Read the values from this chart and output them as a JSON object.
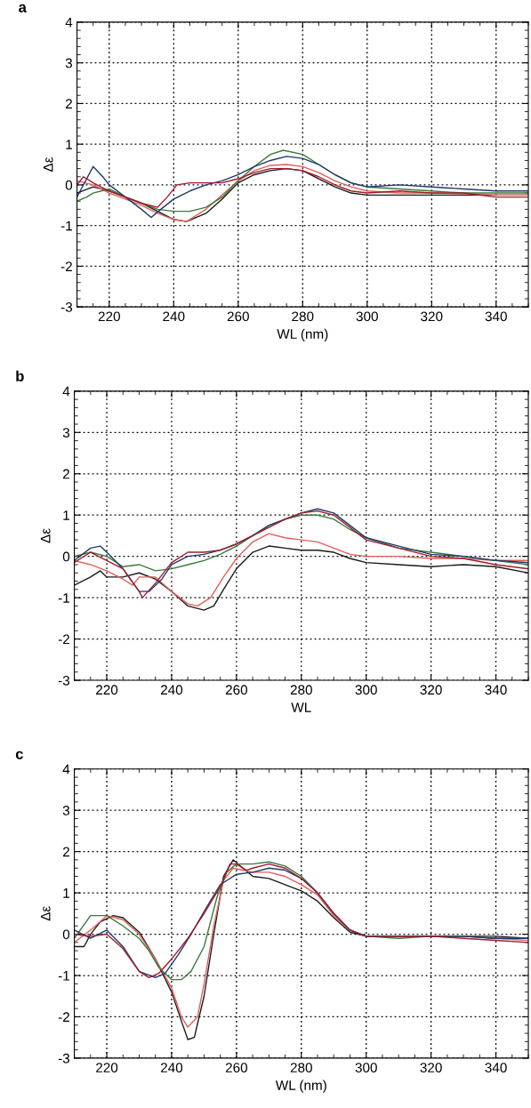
{
  "chart_data": [
    {
      "type": "line",
      "title": "a",
      "xlabel": "WL (nm)",
      "ylabel": "Δε",
      "xlim": [
        210,
        350
      ],
      "ylim": [
        -3,
        4
      ],
      "xticks": [
        220,
        240,
        260,
        280,
        300,
        320,
        340
      ],
      "yticks": [
        -3,
        -2,
        -1,
        0,
        1,
        2,
        3,
        4
      ],
      "grid": true,
      "line_style": "solid",
      "series": [
        {
          "color": "#1a1a1a",
          "x": [
            210,
            215,
            220,
            225,
            230,
            235,
            240,
            244,
            250,
            255,
            260,
            265,
            270,
            275,
            280,
            285,
            290,
            295,
            300,
            310,
            320,
            330,
            340,
            350
          ],
          "values": [
            -0.2,
            -0.05,
            -0.15,
            -0.3,
            -0.45,
            -0.65,
            -0.85,
            -0.9,
            -0.7,
            -0.35,
            0.05,
            0.25,
            0.35,
            0.4,
            0.35,
            0.15,
            -0.05,
            -0.2,
            -0.25,
            -0.25,
            -0.25,
            -0.25,
            -0.25,
            -0.25
          ]
        },
        {
          "color": "#e0605a",
          "x": [
            210,
            215,
            220,
            225,
            230,
            235,
            240,
            244,
            250,
            255,
            260,
            265,
            270,
            275,
            280,
            285,
            290,
            295,
            300,
            310,
            320,
            330,
            340,
            350
          ],
          "values": [
            0.1,
            0.0,
            -0.2,
            -0.35,
            -0.5,
            -0.7,
            -0.85,
            -0.9,
            -0.6,
            -0.25,
            0.1,
            0.35,
            0.48,
            0.5,
            0.45,
            0.3,
            0.1,
            -0.05,
            -0.15,
            -0.2,
            -0.2,
            -0.22,
            -0.25,
            -0.25
          ]
        },
        {
          "color": "#3a7a3a",
          "x": [
            210,
            213,
            215,
            220,
            225,
            230,
            235,
            240,
            245,
            250,
            255,
            260,
            265,
            270,
            274,
            280,
            285,
            290,
            295,
            300,
            310,
            320,
            330,
            340,
            350
          ],
          "values": [
            -0.4,
            -0.3,
            -0.2,
            -0.1,
            -0.3,
            -0.45,
            -0.6,
            -0.65,
            -0.65,
            -0.55,
            -0.3,
            0.1,
            0.45,
            0.75,
            0.85,
            0.75,
            0.5,
            0.25,
            0.05,
            -0.05,
            -0.1,
            -0.15,
            -0.2,
            -0.2,
            -0.2
          ]
        },
        {
          "color": "#1f3a6e",
          "x": [
            210,
            215,
            218,
            220,
            225,
            230,
            233,
            236,
            240,
            245,
            250,
            255,
            260,
            265,
            270,
            275,
            280,
            285,
            290,
            295,
            300,
            310,
            320,
            330,
            340,
            350
          ],
          "values": [
            -0.3,
            0.45,
            0.2,
            0.0,
            -0.3,
            -0.6,
            -0.8,
            -0.6,
            -0.35,
            -0.15,
            0.0,
            0.1,
            0.25,
            0.45,
            0.6,
            0.7,
            0.65,
            0.5,
            0.25,
            0.05,
            -0.05,
            0.0,
            -0.05,
            -0.1,
            -0.15,
            -0.15
          ]
        },
        {
          "color": "#a01c2c",
          "x": [
            210,
            212,
            215,
            220,
            225,
            230,
            235,
            238,
            241,
            245,
            250,
            255,
            260,
            265,
            270,
            275,
            280,
            285,
            290,
            295,
            300,
            310,
            320,
            330,
            340,
            350
          ],
          "values": [
            0.0,
            0.2,
            0.05,
            -0.15,
            -0.3,
            -0.45,
            -0.55,
            -0.3,
            0.0,
            0.05,
            0.05,
            0.05,
            0.15,
            0.3,
            0.4,
            0.4,
            0.35,
            0.2,
            0.0,
            -0.15,
            -0.2,
            -0.15,
            -0.2,
            -0.2,
            -0.3,
            -0.3
          ]
        }
      ]
    },
    {
      "type": "line",
      "title": "b",
      "xlabel": "WL",
      "ylabel": "Δε",
      "xlim": [
        210,
        350
      ],
      "ylim": [
        -3,
        4
      ],
      "xticks": [
        220,
        240,
        260,
        280,
        300,
        320,
        340
      ],
      "yticks": [
        -3,
        -2,
        -1,
        0,
        1,
        2,
        3,
        4
      ],
      "grid": true,
      "line_style": "solid",
      "series": [
        {
          "color": "#1a1a1a",
          "x": [
            210,
            215,
            218,
            220,
            225,
            230,
            235,
            240,
            245,
            250,
            253,
            256,
            260,
            265,
            270,
            275,
            280,
            285,
            290,
            295,
            300,
            310,
            320,
            330,
            340,
            350
          ],
          "values": [
            -0.7,
            -0.5,
            -0.35,
            -0.5,
            -0.5,
            -0.4,
            -0.55,
            -0.85,
            -1.2,
            -1.3,
            -1.2,
            -0.8,
            -0.3,
            0.1,
            0.25,
            0.2,
            0.15,
            0.15,
            0.1,
            -0.05,
            -0.15,
            -0.2,
            -0.25,
            -0.2,
            -0.25,
            -0.4
          ]
        },
        {
          "color": "#e0605a",
          "x": [
            210,
            215,
            220,
            225,
            228,
            230,
            235,
            240,
            245,
            248,
            252,
            256,
            260,
            265,
            270,
            275,
            280,
            285,
            290,
            295,
            300,
            310,
            320,
            330,
            340,
            350
          ],
          "values": [
            -0.1,
            -0.2,
            -0.35,
            -0.55,
            -0.7,
            -0.5,
            -0.5,
            -0.85,
            -1.15,
            -1.2,
            -1.0,
            -0.5,
            -0.05,
            0.35,
            0.55,
            0.45,
            0.4,
            0.35,
            0.2,
            0.05,
            0.0,
            0.0,
            -0.05,
            -0.05,
            -0.1,
            -0.1
          ]
        },
        {
          "color": "#3a7a3a",
          "x": [
            210,
            215,
            220,
            225,
            230,
            235,
            240,
            245,
            250,
            255,
            260,
            265,
            270,
            275,
            280,
            285,
            290,
            295,
            300,
            310,
            320,
            330,
            340,
            350
          ],
          "values": [
            0.0,
            0.1,
            0.0,
            -0.25,
            -0.2,
            -0.35,
            -0.3,
            -0.2,
            -0.1,
            0.05,
            0.25,
            0.5,
            0.75,
            0.9,
            1.0,
            1.0,
            0.9,
            0.65,
            0.45,
            0.2,
            0.1,
            0.0,
            -0.1,
            -0.2
          ]
        },
        {
          "color": "#1f3a6e",
          "x": [
            210,
            215,
            218,
            220,
            225,
            230,
            233,
            237,
            240,
            245,
            250,
            255,
            260,
            265,
            270,
            275,
            280,
            285,
            290,
            295,
            300,
            310,
            320,
            330,
            340,
            350
          ],
          "values": [
            -0.1,
            0.2,
            0.25,
            0.1,
            -0.3,
            -0.85,
            -0.85,
            -0.55,
            -0.2,
            0.0,
            0.05,
            0.15,
            0.3,
            0.5,
            0.75,
            0.9,
            1.05,
            1.15,
            1.05,
            0.75,
            0.45,
            0.25,
            0.05,
            0.0,
            -0.1,
            -0.15
          ]
        },
        {
          "color": "#a01c2c",
          "x": [
            210,
            215,
            220,
            225,
            230,
            231,
            235,
            240,
            245,
            250,
            255,
            260,
            265,
            270,
            275,
            280,
            285,
            290,
            295,
            300,
            310,
            320,
            330,
            340,
            350
          ],
          "values": [
            -0.15,
            0.1,
            -0.1,
            -0.3,
            -0.85,
            -1.0,
            -0.65,
            -0.15,
            0.1,
            0.1,
            0.15,
            0.3,
            0.5,
            0.7,
            0.9,
            1.05,
            1.1,
            1.0,
            0.7,
            0.4,
            0.2,
            0.0,
            -0.05,
            -0.2,
            -0.3
          ]
        }
      ]
    },
    {
      "type": "line",
      "title": "c",
      "xlabel": "WL (nm)",
      "ylabel": "Δε",
      "xlim": [
        210,
        350
      ],
      "ylim": [
        -3,
        4
      ],
      "xticks": [
        220,
        240,
        260,
        280,
        300,
        320,
        340
      ],
      "yticks": [
        -3,
        -2,
        -1,
        0,
        1,
        2,
        3,
        4
      ],
      "grid": true,
      "line_style": "solid",
      "series": [
        {
          "color": "#1a1a1a",
          "x": [
            210,
            213,
            215,
            218,
            222,
            225,
            230,
            235,
            240,
            243,
            245,
            247,
            250,
            253,
            256,
            259,
            262,
            265,
            270,
            275,
            280,
            285,
            290,
            295,
            300,
            310,
            320,
            330,
            340,
            350
          ],
          "values": [
            -0.3,
            -0.3,
            0.0,
            0.3,
            0.45,
            0.4,
            0.05,
            -0.6,
            -1.4,
            -2.1,
            -2.55,
            -2.5,
            -1.5,
            0.0,
            1.4,
            1.8,
            1.6,
            1.4,
            1.35,
            1.2,
            1.05,
            0.8,
            0.4,
            0.05,
            -0.05,
            -0.05,
            -0.05,
            -0.05,
            -0.05,
            -0.1
          ]
        },
        {
          "color": "#e0605a",
          "x": [
            210,
            215,
            220,
            225,
            230,
            235,
            240,
            243,
            245,
            248,
            250,
            253,
            256,
            259,
            262,
            265,
            270,
            275,
            280,
            285,
            290,
            295,
            300,
            310,
            320,
            330,
            340,
            350
          ],
          "values": [
            -0.2,
            0.1,
            0.45,
            0.35,
            0.0,
            -0.6,
            -1.3,
            -2.0,
            -2.25,
            -2.0,
            -1.2,
            0.2,
            1.3,
            1.6,
            1.55,
            1.5,
            1.5,
            1.4,
            1.2,
            0.95,
            0.45,
            0.1,
            -0.05,
            -0.05,
            -0.05,
            -0.05,
            -0.1,
            -0.15
          ]
        },
        {
          "color": "#3a7a3a",
          "x": [
            210,
            215,
            220,
            225,
            230,
            233,
            236,
            240,
            243,
            246,
            250,
            254,
            257,
            260,
            265,
            270,
            275,
            280,
            285,
            290,
            295,
            300,
            310,
            320,
            330,
            340,
            350
          ],
          "values": [
            -0.1,
            0.45,
            0.45,
            0.2,
            -0.1,
            -0.4,
            -0.8,
            -1.1,
            -1.1,
            -0.9,
            -0.3,
            0.9,
            1.5,
            1.7,
            1.7,
            1.75,
            1.65,
            1.4,
            1.0,
            0.5,
            0.1,
            -0.05,
            -0.1,
            -0.05,
            -0.05,
            -0.1,
            -0.1
          ]
        },
        {
          "color": "#1f3a6e",
          "x": [
            210,
            215,
            220,
            225,
            230,
            235,
            238,
            242,
            246,
            250,
            255,
            260,
            265,
            270,
            275,
            280,
            285,
            290,
            295,
            300,
            310,
            320,
            330,
            340,
            350
          ],
          "values": [
            0.1,
            -0.1,
            0.1,
            -0.3,
            -0.9,
            -1.05,
            -0.95,
            -0.5,
            0.0,
            0.55,
            1.2,
            1.45,
            1.5,
            1.6,
            1.55,
            1.35,
            1.0,
            0.5,
            0.1,
            -0.05,
            -0.05,
            -0.05,
            -0.05,
            -0.1,
            -0.1
          ]
        },
        {
          "color": "#a01c2c",
          "x": [
            210,
            215,
            220,
            225,
            230,
            233,
            236,
            240,
            245,
            250,
            255,
            258,
            260,
            263,
            265,
            270,
            275,
            280,
            285,
            290,
            295,
            300,
            310,
            320,
            330,
            340,
            350
          ],
          "values": [
            0.0,
            -0.05,
            0.0,
            -0.35,
            -0.9,
            -1.05,
            -0.95,
            -0.6,
            -0.1,
            0.5,
            1.15,
            1.7,
            1.7,
            1.55,
            1.6,
            1.7,
            1.6,
            1.35,
            1.0,
            0.5,
            0.1,
            -0.05,
            -0.05,
            -0.05,
            -0.1,
            -0.15,
            -0.2
          ]
        }
      ]
    }
  ]
}
